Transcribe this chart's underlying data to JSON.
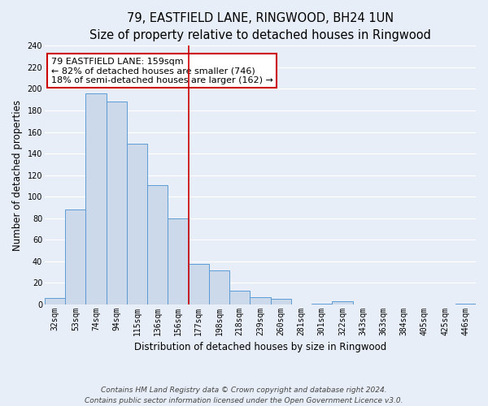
{
  "title": "79, EASTFIELD LANE, RINGWOOD, BH24 1UN",
  "subtitle": "Size of property relative to detached houses in Ringwood",
  "xlabel": "Distribution of detached houses by size in Ringwood",
  "ylabel": "Number of detached properties",
  "bar_labels": [
    "32sqm",
    "53sqm",
    "74sqm",
    "94sqm",
    "115sqm",
    "136sqm",
    "156sqm",
    "177sqm",
    "198sqm",
    "218sqm",
    "239sqm",
    "260sqm",
    "281sqm",
    "301sqm",
    "322sqm",
    "343sqm",
    "363sqm",
    "384sqm",
    "405sqm",
    "425sqm",
    "446sqm"
  ],
  "bar_values": [
    6,
    88,
    196,
    188,
    149,
    111,
    80,
    38,
    32,
    13,
    7,
    5,
    0,
    1,
    3,
    0,
    0,
    0,
    0,
    0,
    1
  ],
  "bar_color": "#ccd9ea",
  "bar_edge_color": "#5b9bd5",
  "property_line_x": 6.5,
  "annotation_title": "79 EASTFIELD LANE: 159sqm",
  "annotation_line1": "← 82% of detached houses are smaller (746)",
  "annotation_line2": "18% of semi-detached houses are larger (162) →",
  "annotation_box_color": "#ffffff",
  "annotation_box_edge_color": "#cc0000",
  "vline_color": "#cc0000",
  "ylim": [
    0,
    240
  ],
  "yticks": [
    0,
    20,
    40,
    60,
    80,
    100,
    120,
    140,
    160,
    180,
    200,
    220,
    240
  ],
  "footnote1": "Contains HM Land Registry data © Crown copyright and database right 2024.",
  "footnote2": "Contains public sector information licensed under the Open Government Licence v3.0.",
  "background_color": "#e8eef7",
  "grid_color": "#ffffff",
  "title_fontsize": 10.5,
  "subtitle_fontsize": 9,
  "axis_label_fontsize": 8.5,
  "tick_fontsize": 7,
  "annotation_fontsize": 8,
  "footnote_fontsize": 6.5
}
